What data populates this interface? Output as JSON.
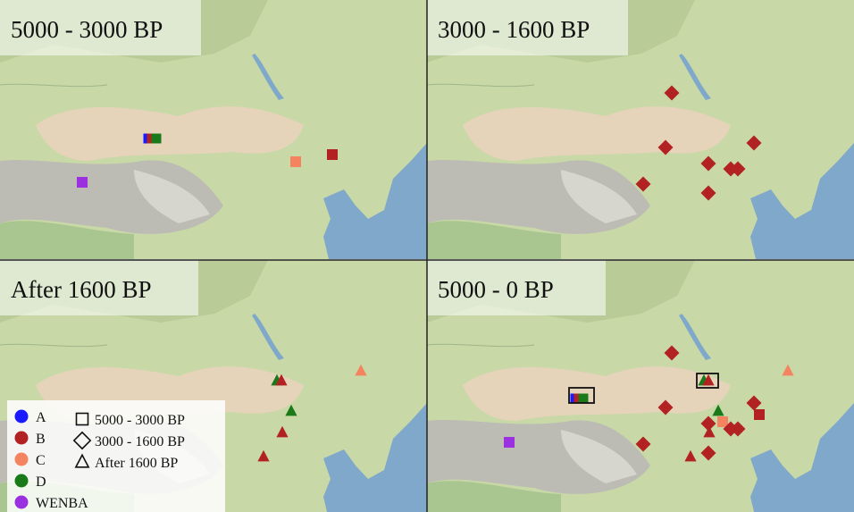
{
  "panels": [
    {
      "title": "5000 - 3000 BP"
    },
    {
      "title": "3000 - 1600 BP"
    },
    {
      "title": "After 1600 BP"
    },
    {
      "title": "5000 - 0 BP"
    }
  ],
  "legend": {
    "groups": [
      {
        "name": "A",
        "color": "#1a1aff"
      },
      {
        "name": "B",
        "color": "#b22222"
      },
      {
        "name": "C",
        "color": "#f4845f"
      },
      {
        "name": "D",
        "color": "#1a7a1a"
      },
      {
        "name": "WENBA",
        "color": "#9b30e0"
      }
    ],
    "periods": [
      "5000 - 3000 BP",
      "3000 - 1600 BP",
      "After 1600 BP"
    ]
  }
}
